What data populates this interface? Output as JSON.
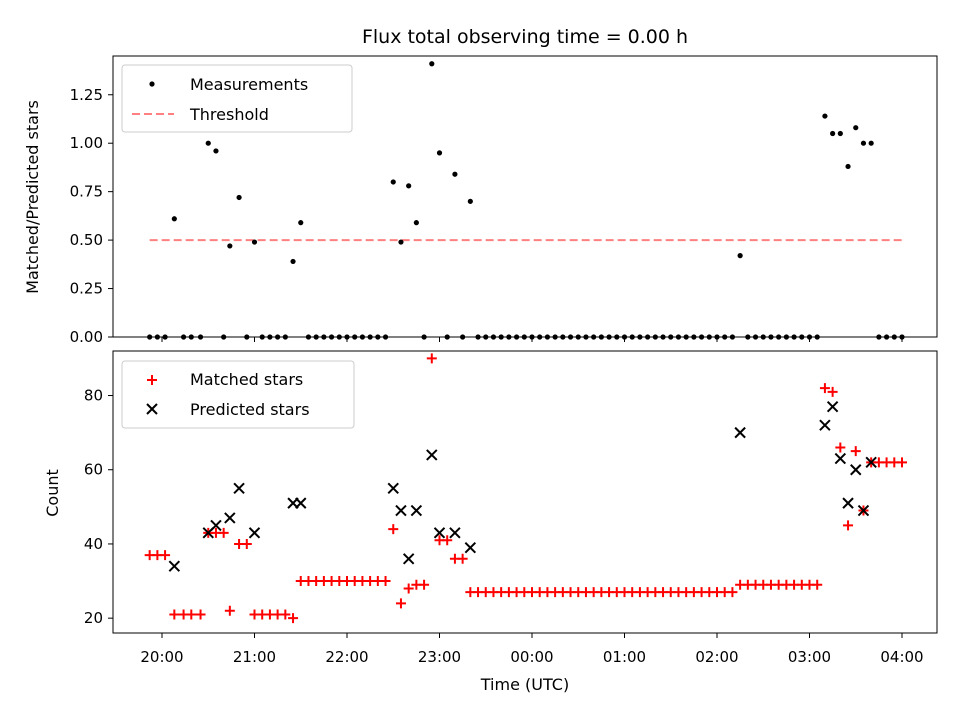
{
  "chart_data": [
    {
      "type": "scatter",
      "title": "Flux total observing time = 0.00 h",
      "xlabel": "",
      "ylabel": "Matched/Predicted stars",
      "ylim": [
        0,
        1.45
      ],
      "yticks": [
        "0.00",
        "0.25",
        "0.50",
        "0.75",
        "1.00",
        "1.25"
      ],
      "legend": {
        "position": "top-left",
        "entries": [
          "Measurements",
          "Threshold"
        ]
      },
      "series": [
        {
          "name": "Measurements",
          "marker": "dot",
          "color": "#000000",
          "points": [
            [
              "19:52",
              0
            ],
            [
              "19:57",
              0
            ],
            [
              "20:02",
              0
            ],
            [
              "20:08",
              0.61
            ],
            [
              "20:14",
              0
            ],
            [
              "20:19",
              0
            ],
            [
              "20:25",
              0
            ],
            [
              "20:30",
              1.0
            ],
            [
              "20:35",
              0.96
            ],
            [
              "20:40",
              0
            ],
            [
              "20:44",
              0.47
            ],
            [
              "20:50",
              0.72
            ],
            [
              "20:55",
              0
            ],
            [
              "21:00",
              0.49
            ],
            [
              "21:05",
              0
            ],
            [
              "21:10",
              0
            ],
            [
              "21:15",
              0
            ],
            [
              "21:20",
              0
            ],
            [
              "21:25",
              0.39
            ],
            [
              "21:30",
              0.59
            ],
            [
              "21:35",
              0
            ],
            [
              "21:40",
              0
            ],
            [
              "21:45",
              0
            ],
            [
              "21:50",
              0
            ],
            [
              "21:55",
              0
            ],
            [
              "22:00",
              0
            ],
            [
              "22:05",
              0
            ],
            [
              "22:10",
              0
            ],
            [
              "22:15",
              0
            ],
            [
              "22:20",
              0
            ],
            [
              "22:25",
              0
            ],
            [
              "22:30",
              0.8
            ],
            [
              "22:35",
              0.49
            ],
            [
              "22:40",
              0.78
            ],
            [
              "22:45",
              0.59
            ],
            [
              "22:50",
              0
            ],
            [
              "22:55",
              1.41
            ],
            [
              "23:00",
              0.95
            ],
            [
              "23:05",
              0
            ],
            [
              "23:10",
              0.84
            ],
            [
              "23:15",
              0
            ],
            [
              "23:20",
              0.7
            ],
            [
              "23:25",
              0
            ],
            [
              "23:30",
              0
            ],
            [
              "23:35",
              0
            ],
            [
              "23:40",
              0
            ],
            [
              "23:45",
              0
            ],
            [
              "23:50",
              0
            ],
            [
              "23:55",
              0
            ],
            [
              "00:00",
              0
            ],
            [
              "00:05",
              0
            ],
            [
              "00:10",
              0
            ],
            [
              "00:15",
              0
            ],
            [
              "00:20",
              0
            ],
            [
              "00:25",
              0
            ],
            [
              "00:30",
              0
            ],
            [
              "00:35",
              0
            ],
            [
              "00:40",
              0
            ],
            [
              "00:45",
              0
            ],
            [
              "00:50",
              0
            ],
            [
              "00:55",
              0
            ],
            [
              "01:00",
              0
            ],
            [
              "01:05",
              0
            ],
            [
              "01:10",
              0
            ],
            [
              "01:15",
              0
            ],
            [
              "01:20",
              0
            ],
            [
              "01:25",
              0
            ],
            [
              "01:30",
              0
            ],
            [
              "01:35",
              0
            ],
            [
              "01:40",
              0
            ],
            [
              "01:45",
              0
            ],
            [
              "01:50",
              0
            ],
            [
              "01:55",
              0
            ],
            [
              "02:00",
              0
            ],
            [
              "02:05",
              0
            ],
            [
              "02:10",
              0
            ],
            [
              "02:15",
              0.42
            ],
            [
              "02:20",
              0
            ],
            [
              "02:25",
              0
            ],
            [
              "02:30",
              0
            ],
            [
              "02:35",
              0
            ],
            [
              "02:40",
              0
            ],
            [
              "02:45",
              0
            ],
            [
              "02:50",
              0
            ],
            [
              "02:55",
              0
            ],
            [
              "03:00",
              0
            ],
            [
              "03:05",
              0
            ],
            [
              "03:10",
              1.14
            ],
            [
              "03:15",
              1.05
            ],
            [
              "03:20",
              1.05
            ],
            [
              "03:25",
              0.88
            ],
            [
              "03:30",
              1.08
            ],
            [
              "03:35",
              1.0
            ],
            [
              "03:40",
              1.0
            ],
            [
              "03:45",
              0
            ],
            [
              "03:50",
              0
            ],
            [
              "03:55",
              0
            ],
            [
              "04:00",
              0
            ]
          ]
        },
        {
          "name": "Threshold",
          "marker": "dashed-line",
          "color": "#ff8080",
          "points": [
            [
              "19:52",
              0.5
            ],
            [
              "04:00",
              0.5
            ]
          ]
        }
      ]
    },
    {
      "type": "scatter",
      "title": "",
      "xlabel": "Time (UTC)",
      "ylabel": "Count",
      "ylim": [
        16,
        92
      ],
      "yticks": [
        "20",
        "40",
        "60",
        "80"
      ],
      "xticks": [
        "20:00",
        "21:00",
        "22:00",
        "23:00",
        "00:00",
        "01:00",
        "02:00",
        "03:00",
        "04:00"
      ],
      "legend": {
        "position": "top-left",
        "entries": [
          "Matched stars",
          "Predicted stars"
        ]
      },
      "series": [
        {
          "name": "Matched stars",
          "marker": "plus",
          "color": "#ff0000",
          "points": [
            [
              "19:52",
              37
            ],
            [
              "19:57",
              37
            ],
            [
              "20:02",
              37
            ],
            [
              "20:08",
              21
            ],
            [
              "20:14",
              21
            ],
            [
              "20:19",
              21
            ],
            [
              "20:25",
              21
            ],
            [
              "20:30",
              43
            ],
            [
              "20:35",
              43
            ],
            [
              "20:40",
              43
            ],
            [
              "20:44",
              22
            ],
            [
              "20:50",
              40
            ],
            [
              "20:55",
              40
            ],
            [
              "21:00",
              21
            ],
            [
              "21:05",
              21
            ],
            [
              "21:10",
              21
            ],
            [
              "21:15",
              21
            ],
            [
              "21:20",
              21
            ],
            [
              "21:25",
              20
            ],
            [
              "21:30",
              30
            ],
            [
              "21:35",
              30
            ],
            [
              "21:40",
              30
            ],
            [
              "21:45",
              30
            ],
            [
              "21:50",
              30
            ],
            [
              "21:55",
              30
            ],
            [
              "22:00",
              30
            ],
            [
              "22:05",
              30
            ],
            [
              "22:10",
              30
            ],
            [
              "22:15",
              30
            ],
            [
              "22:20",
              30
            ],
            [
              "22:25",
              30
            ],
            [
              "22:30",
              44
            ],
            [
              "22:35",
              24
            ],
            [
              "22:40",
              28
            ],
            [
              "22:45",
              29
            ],
            [
              "22:50",
              29
            ],
            [
              "22:55",
              90
            ],
            [
              "23:00",
              41
            ],
            [
              "23:05",
              41
            ],
            [
              "23:10",
              36
            ],
            [
              "23:15",
              36
            ],
            [
              "23:20",
              27
            ],
            [
              "23:25",
              27
            ],
            [
              "23:30",
              27
            ],
            [
              "23:35",
              27
            ],
            [
              "23:40",
              27
            ],
            [
              "23:45",
              27
            ],
            [
              "23:50",
              27
            ],
            [
              "23:55",
              27
            ],
            [
              "00:00",
              27
            ],
            [
              "00:05",
              27
            ],
            [
              "00:10",
              27
            ],
            [
              "00:15",
              27
            ],
            [
              "00:20",
              27
            ],
            [
              "00:25",
              27
            ],
            [
              "00:30",
              27
            ],
            [
              "00:35",
              27
            ],
            [
              "00:40",
              27
            ],
            [
              "00:45",
              27
            ],
            [
              "00:50",
              27
            ],
            [
              "00:55",
              27
            ],
            [
              "01:00",
              27
            ],
            [
              "01:05",
              27
            ],
            [
              "01:10",
              27
            ],
            [
              "01:15",
              27
            ],
            [
              "01:20",
              27
            ],
            [
              "01:25",
              27
            ],
            [
              "01:30",
              27
            ],
            [
              "01:35",
              27
            ],
            [
              "01:40",
              27
            ],
            [
              "01:45",
              27
            ],
            [
              "01:50",
              27
            ],
            [
              "01:55",
              27
            ],
            [
              "02:00",
              27
            ],
            [
              "02:05",
              27
            ],
            [
              "02:10",
              27
            ],
            [
              "02:15",
              29
            ],
            [
              "02:20",
              29
            ],
            [
              "02:25",
              29
            ],
            [
              "02:30",
              29
            ],
            [
              "02:35",
              29
            ],
            [
              "02:40",
              29
            ],
            [
              "02:45",
              29
            ],
            [
              "02:50",
              29
            ],
            [
              "02:55",
              29
            ],
            [
              "03:00",
              29
            ],
            [
              "03:05",
              29
            ],
            [
              "03:10",
              82
            ],
            [
              "03:15",
              81
            ],
            [
              "03:20",
              66
            ],
            [
              "03:25",
              45
            ],
            [
              "03:30",
              65
            ],
            [
              "03:35",
              49
            ],
            [
              "03:40",
              62
            ],
            [
              "03:45",
              62
            ],
            [
              "03:50",
              62
            ],
            [
              "03:55",
              62
            ],
            [
              "04:00",
              62
            ]
          ]
        },
        {
          "name": "Predicted stars",
          "marker": "x",
          "color": "#000000",
          "points": [
            [
              "20:08",
              34
            ],
            [
              "20:30",
              43
            ],
            [
              "20:35",
              45
            ],
            [
              "20:44",
              47
            ],
            [
              "20:50",
              55
            ],
            [
              "21:00",
              43
            ],
            [
              "21:25",
              51
            ],
            [
              "21:30",
              51
            ],
            [
              "22:30",
              55
            ],
            [
              "22:35",
              49
            ],
            [
              "22:40",
              36
            ],
            [
              "22:45",
              49
            ],
            [
              "22:55",
              64
            ],
            [
              "23:00",
              43
            ],
            [
              "23:10",
              43
            ],
            [
              "23:20",
              39
            ],
            [
              "02:15",
              70
            ],
            [
              "03:10",
              72
            ],
            [
              "03:15",
              77
            ],
            [
              "03:20",
              63
            ],
            [
              "03:25",
              51
            ],
            [
              "03:30",
              60
            ],
            [
              "03:35",
              49
            ],
            [
              "03:40",
              62
            ]
          ]
        }
      ]
    }
  ]
}
